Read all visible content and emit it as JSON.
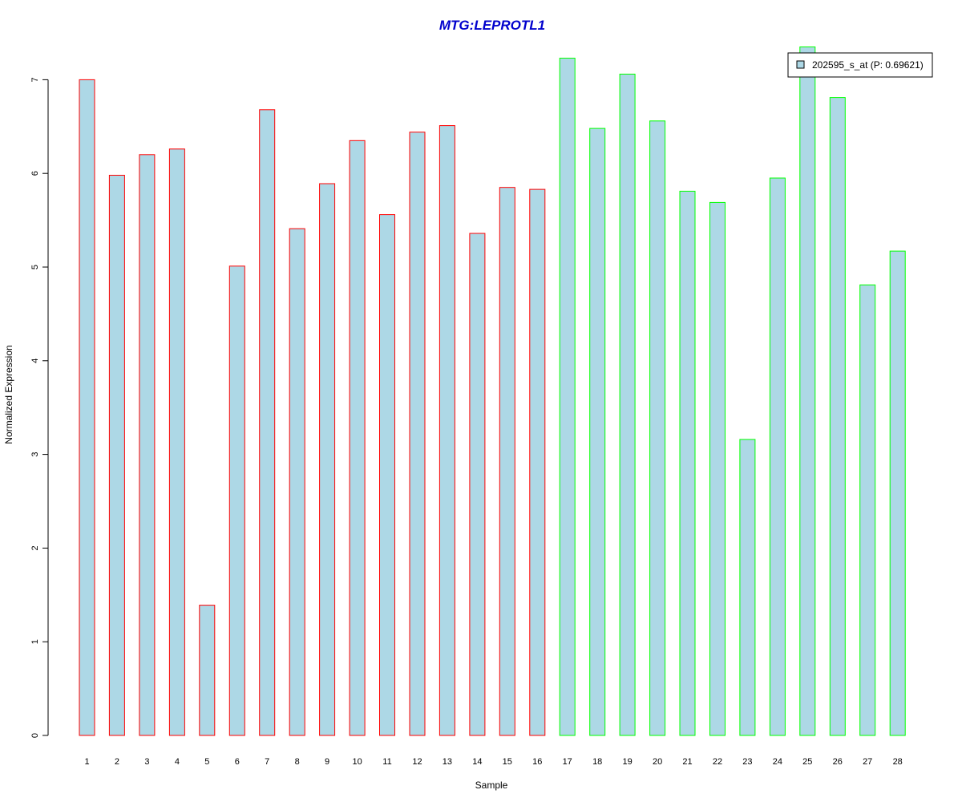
{
  "chart_data": {
    "type": "bar",
    "title": "MTG:LEPROTL1",
    "xlabel": "Sample",
    "ylabel": "Normalized Expression",
    "ylim": [
      0,
      7.35
    ],
    "yticks": [
      0,
      1,
      2,
      3,
      4,
      5,
      6,
      7
    ],
    "categories": [
      "1",
      "2",
      "3",
      "4",
      "5",
      "6",
      "7",
      "8",
      "9",
      "10",
      "11",
      "12",
      "13",
      "14",
      "15",
      "16",
      "17",
      "18",
      "19",
      "20",
      "21",
      "22",
      "23",
      "24",
      "25",
      "26",
      "27",
      "28"
    ],
    "series": [
      {
        "name": "202595_s_at (P: 0.69621)",
        "values": [
          7.0,
          5.98,
          6.2,
          6.26,
          1.39,
          5.01,
          6.68,
          5.41,
          5.89,
          6.35,
          5.56,
          6.44,
          6.51,
          5.36,
          5.85,
          5.83,
          7.23,
          6.48,
          7.06,
          6.56,
          5.81,
          5.69,
          3.16,
          5.95,
          7.35,
          6.81,
          4.81,
          5.17
        ],
        "groups": [
          "A",
          "A",
          "A",
          "A",
          "A",
          "A",
          "A",
          "A",
          "A",
          "A",
          "A",
          "A",
          "A",
          "A",
          "A",
          "A",
          "B",
          "B",
          "B",
          "B",
          "B",
          "B",
          "B",
          "B",
          "B",
          "B",
          "B",
          "B"
        ]
      }
    ],
    "grid": false,
    "legend_position": "top-right",
    "colors": {
      "bar_fill": "#add8e6",
      "group_A_border": "#ff0000",
      "group_B_border": "#00ff00",
      "title": "#0000cd",
      "axis": "#000000"
    }
  }
}
